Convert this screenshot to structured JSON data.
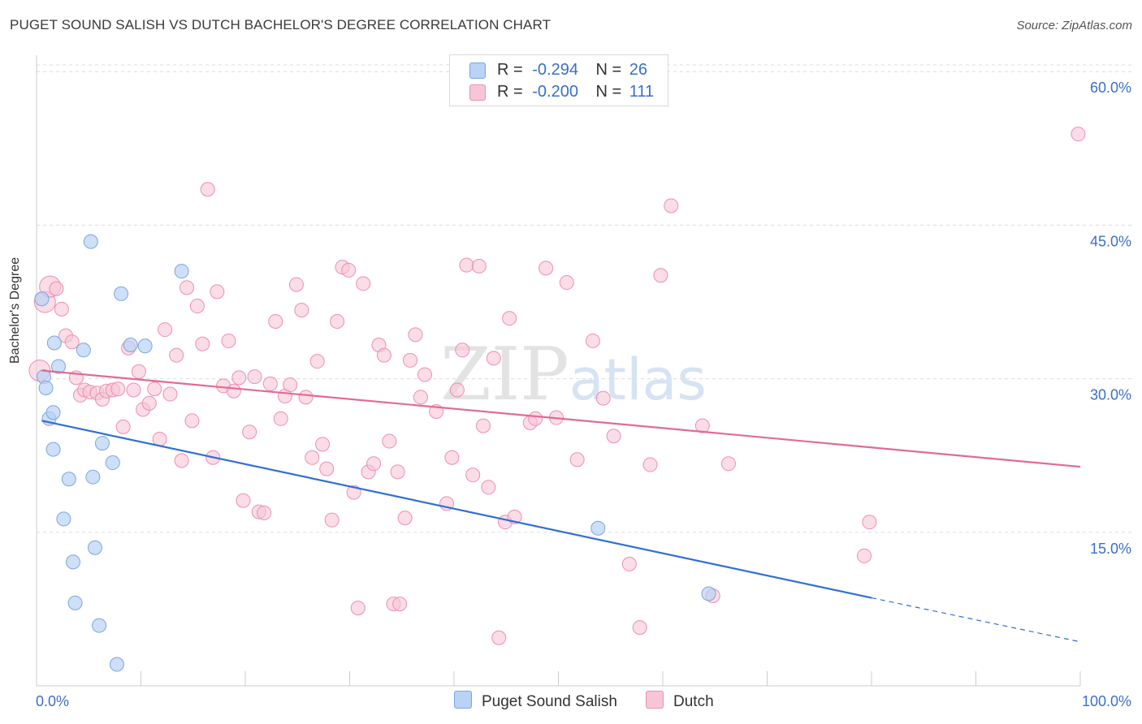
{
  "title": "PUGET SOUND SALISH VS DUTCH BACHELOR'S DEGREE CORRELATION CHART",
  "source": "Source: ZipAtlas.com",
  "watermark": "ZIPatlas",
  "colors": {
    "blue_fill": "#b9d2f5",
    "blue_stroke": "#7aa6e0",
    "blue_line": "#2f6fd6",
    "pink_fill": "#f7c6d6",
    "pink_stroke": "#ec8fb0",
    "pink_line": "#e06b97",
    "tick_color": "#3b6fc9",
    "grid": "#dcdcdc"
  },
  "legend": {
    "rows": [
      {
        "r_label": "R =",
        "r_value": "-0.294",
        "n_label": "N =",
        "n_value": "26"
      },
      {
        "r_label": "R =",
        "r_value": "-0.200",
        "n_label": "N =",
        "n_value": "111"
      }
    ]
  },
  "chart_data": {
    "type": "scatter",
    "title": "PUGET SOUND SALISH VS DUTCH BACHELOR'S DEGREE CORRELATION CHART",
    "xlabel": "",
    "ylabel": "Bachelor's Degree",
    "xlim": [
      0,
      100
    ],
    "ylim": [
      0,
      62
    ],
    "x_tick_labels": [
      "0.0%",
      "100.0%"
    ],
    "y_ticks": [
      15,
      30,
      45,
      60
    ],
    "y_tick_labels": [
      "15.0%",
      "30.0%",
      "45.0%",
      "60.0%"
    ],
    "grid": true,
    "legend_position": "bottom-center",
    "series": [
      {
        "name": "Puget Sound Salish",
        "r": -0.294,
        "n": 26,
        "trend": {
          "x0": 0.5,
          "y0": 25.9,
          "x1": 80,
          "y1": 8.6,
          "dash_to_x": 100,
          "dash_to_y": 4.3
        },
        "points": [
          [
            0.5,
            37.8
          ],
          [
            0.7,
            30.2
          ],
          [
            0.9,
            29.1
          ],
          [
            1.2,
            26.1
          ],
          [
            1.6,
            26.7
          ],
          [
            1.7,
            33.5
          ],
          [
            1.6,
            23.1
          ],
          [
            2.1,
            31.2
          ],
          [
            2.6,
            16.3
          ],
          [
            3.1,
            20.2
          ],
          [
            3.5,
            12.1
          ],
          [
            3.7,
            8.1
          ],
          [
            4.5,
            32.8
          ],
          [
            5.2,
            43.4
          ],
          [
            5.4,
            20.4
          ],
          [
            5.6,
            13.5
          ],
          [
            6.0,
            5.9
          ],
          [
            6.3,
            23.7
          ],
          [
            7.3,
            21.8
          ],
          [
            7.7,
            2.1
          ],
          [
            8.1,
            38.3
          ],
          [
            9.0,
            33.3
          ],
          [
            10.4,
            33.2
          ],
          [
            13.9,
            40.5
          ],
          [
            53.8,
            15.4
          ],
          [
            64.4,
            9.0
          ]
        ]
      },
      {
        "name": "Dutch",
        "r": -0.2,
        "n": 111,
        "trend": {
          "x0": 0.5,
          "y0": 30.8,
          "x1": 100,
          "y1": 21.4
        },
        "points": [
          [
            0.3,
            30.8
          ],
          [
            0.8,
            37.5
          ],
          [
            1.3,
            39.0
          ],
          [
            1.9,
            38.8
          ],
          [
            2.4,
            36.8
          ],
          [
            2.8,
            34.2
          ],
          [
            3.4,
            33.6
          ],
          [
            3.8,
            30.1
          ],
          [
            4.2,
            28.4
          ],
          [
            4.6,
            28.9
          ],
          [
            5.1,
            28.7
          ],
          [
            5.8,
            28.6
          ],
          [
            6.3,
            28.0
          ],
          [
            6.7,
            28.8
          ],
          [
            7.3,
            28.9
          ],
          [
            7.8,
            29.0
          ],
          [
            8.3,
            25.3
          ],
          [
            8.8,
            33.0
          ],
          [
            9.3,
            28.9
          ],
          [
            9.8,
            30.7
          ],
          [
            10.2,
            27.0
          ],
          [
            10.8,
            27.6
          ],
          [
            11.3,
            29.0
          ],
          [
            11.8,
            24.1
          ],
          [
            12.3,
            34.8
          ],
          [
            12.8,
            28.5
          ],
          [
            13.4,
            32.3
          ],
          [
            13.9,
            22.0
          ],
          [
            14.4,
            38.9
          ],
          [
            14.9,
            25.9
          ],
          [
            15.4,
            37.1
          ],
          [
            15.9,
            33.4
          ],
          [
            16.4,
            48.5
          ],
          [
            16.9,
            22.3
          ],
          [
            17.3,
            38.5
          ],
          [
            17.9,
            29.3
          ],
          [
            18.4,
            33.7
          ],
          [
            18.9,
            28.8
          ],
          [
            19.4,
            30.1
          ],
          [
            19.8,
            18.1
          ],
          [
            20.4,
            24.8
          ],
          [
            20.9,
            30.2
          ],
          [
            21.3,
            17.0
          ],
          [
            21.8,
            16.9
          ],
          [
            22.4,
            29.5
          ],
          [
            22.9,
            35.6
          ],
          [
            23.4,
            26.1
          ],
          [
            23.8,
            28.3
          ],
          [
            24.3,
            29.4
          ],
          [
            24.9,
            39.2
          ],
          [
            25.4,
            36.7
          ],
          [
            25.8,
            28.2
          ],
          [
            26.4,
            22.3
          ],
          [
            26.9,
            31.7
          ],
          [
            27.4,
            23.6
          ],
          [
            27.8,
            21.2
          ],
          [
            28.3,
            16.2
          ],
          [
            28.8,
            35.6
          ],
          [
            29.3,
            40.9
          ],
          [
            29.9,
            40.6
          ],
          [
            30.4,
            18.9
          ],
          [
            30.8,
            7.6
          ],
          [
            31.3,
            39.3
          ],
          [
            31.8,
            20.9
          ],
          [
            32.3,
            21.7
          ],
          [
            32.8,
            33.3
          ],
          [
            33.3,
            32.3
          ],
          [
            33.8,
            23.9
          ],
          [
            34.2,
            8.0
          ],
          [
            34.6,
            20.9
          ],
          [
            35.3,
            16.4
          ],
          [
            35.8,
            31.8
          ],
          [
            36.3,
            34.3
          ],
          [
            36.8,
            28.2
          ],
          [
            37.2,
            30.4
          ],
          [
            38.3,
            26.8
          ],
          [
            39.3,
            17.8
          ],
          [
            39.8,
            22.3
          ],
          [
            40.3,
            28.9
          ],
          [
            40.8,
            32.8
          ],
          [
            41.2,
            41.1
          ],
          [
            41.8,
            20.6
          ],
          [
            42.4,
            41.0
          ],
          [
            42.8,
            25.4
          ],
          [
            43.3,
            19.4
          ],
          [
            43.8,
            32.0
          ],
          [
            44.3,
            4.7
          ],
          [
            44.9,
            16.0
          ],
          [
            45.3,
            35.9
          ],
          [
            45.8,
            16.5
          ],
          [
            47.3,
            25.7
          ],
          [
            47.8,
            26.1
          ],
          [
            48.8,
            40.8
          ],
          [
            49.8,
            26.2
          ],
          [
            50.8,
            39.4
          ],
          [
            51.8,
            22.1
          ],
          [
            53.3,
            33.7
          ],
          [
            54.3,
            28.1
          ],
          [
            55.3,
            24.4
          ],
          [
            56.8,
            11.9
          ],
          [
            57.8,
            5.7
          ],
          [
            58.8,
            21.6
          ],
          [
            59.8,
            40.1
          ],
          [
            60.8,
            46.9
          ],
          [
            63.8,
            25.4
          ],
          [
            64.8,
            8.8
          ],
          [
            66.3,
            21.7
          ],
          [
            79.3,
            12.7
          ],
          [
            79.8,
            16.0
          ],
          [
            99.8,
            53.9
          ],
          [
            34.8,
            8.0
          ]
        ]
      }
    ]
  },
  "bottom_legend": [
    {
      "label": "Puget Sound Salish"
    },
    {
      "label": "Dutch"
    }
  ]
}
